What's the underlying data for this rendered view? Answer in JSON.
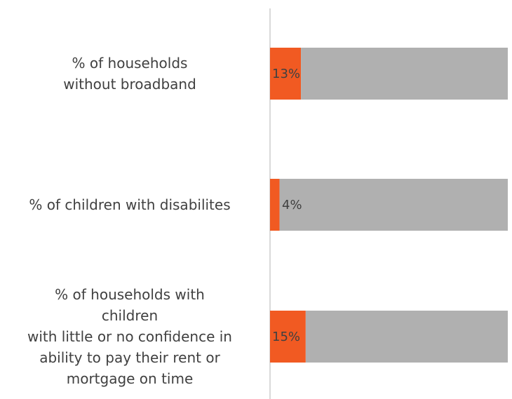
{
  "chart_data": {
    "type": "bar",
    "orientation": "horizontal",
    "stacked": true,
    "categories": [
      "% of households\nwithout broadband",
      "% of children with disabilites",
      "% of households with\nchildren\nwith little or no confidence in\nability to pay their rent or\nmortgage on time"
    ],
    "series": [
      {
        "values": [
          13,
          4,
          15
        ],
        "color": "#f15a22"
      },
      {
        "values": [
          87,
          96,
          85
        ],
        "color": "#b0b0b0"
      }
    ],
    "data_labels": [
      "13%",
      "4%",
      "15%"
    ],
    "xlim": [
      0,
      100
    ],
    "grid": false,
    "legend": "none",
    "axis_color": "#d9d9d9"
  }
}
